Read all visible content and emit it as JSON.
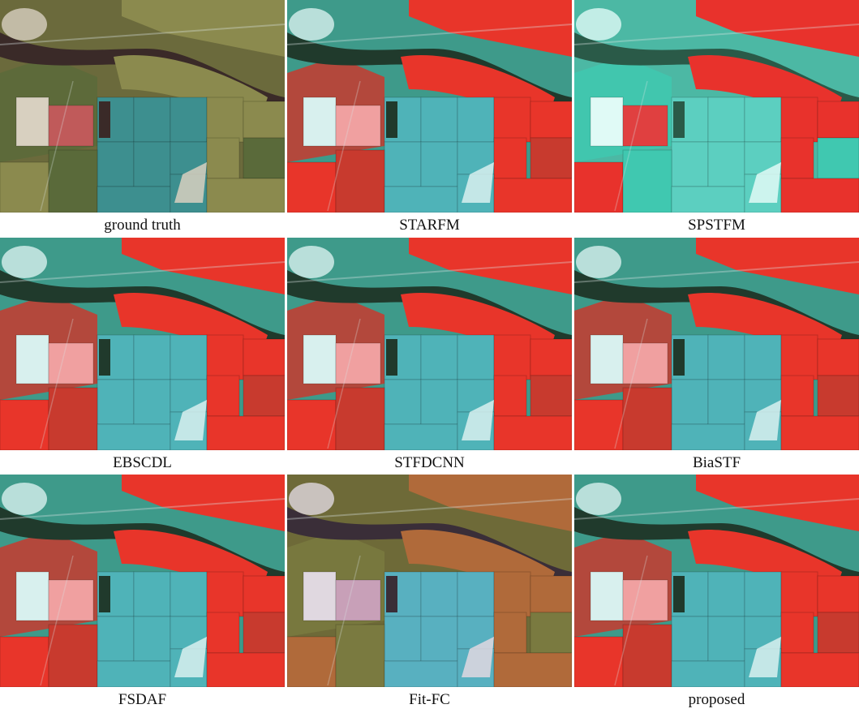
{
  "panels": [
    {
      "label": "ground truth",
      "style": "natural"
    },
    {
      "label": "STARFM",
      "style": "vivid"
    },
    {
      "label": "SPSTFM",
      "style": "cyan"
    },
    {
      "label": "EBSCDL",
      "style": "vivid"
    },
    {
      "label": "STFDCNN",
      "style": "vivid"
    },
    {
      "label": "BiaSTF",
      "style": "vivid"
    },
    {
      "label": "FSDAF",
      "style": "vivid"
    },
    {
      "label": "Fit-FC",
      "style": "muted"
    },
    {
      "label": "proposed",
      "style": "vivid"
    }
  ],
  "colors": {
    "natural": {
      "bg": "#6b6a3c",
      "field_a": "#8b8a4e",
      "field_b": "#5a6a3a",
      "river": "#3a2a28",
      "water": "#3d8f8f",
      "bright": "#d8d0c0",
      "pink": "#c05a5a"
    },
    "vivid": {
      "bg": "#3e9a8a",
      "field_a": "#e8352a",
      "field_b": "#c83a2e",
      "river": "#203a2c",
      "water": "#4fb3b8",
      "bright": "#d8f0ee",
      "pink": "#f0a0a0"
    },
    "cyan": {
      "bg": "#4cb8a4",
      "field_a": "#e8322c",
      "field_b": "#40c8b0",
      "river": "#2a5a48",
      "water": "#5ccfc0",
      "bright": "#e0faf6",
      "pink": "#e04040"
    },
    "muted": {
      "bg": "#6e6a38",
      "field_a": "#b06a3a",
      "field_b": "#7a7a40",
      "river": "#3a2e38",
      "water": "#58b0c0",
      "bright": "#e0d8e0",
      "pink": "#c8a0b8"
    }
  }
}
